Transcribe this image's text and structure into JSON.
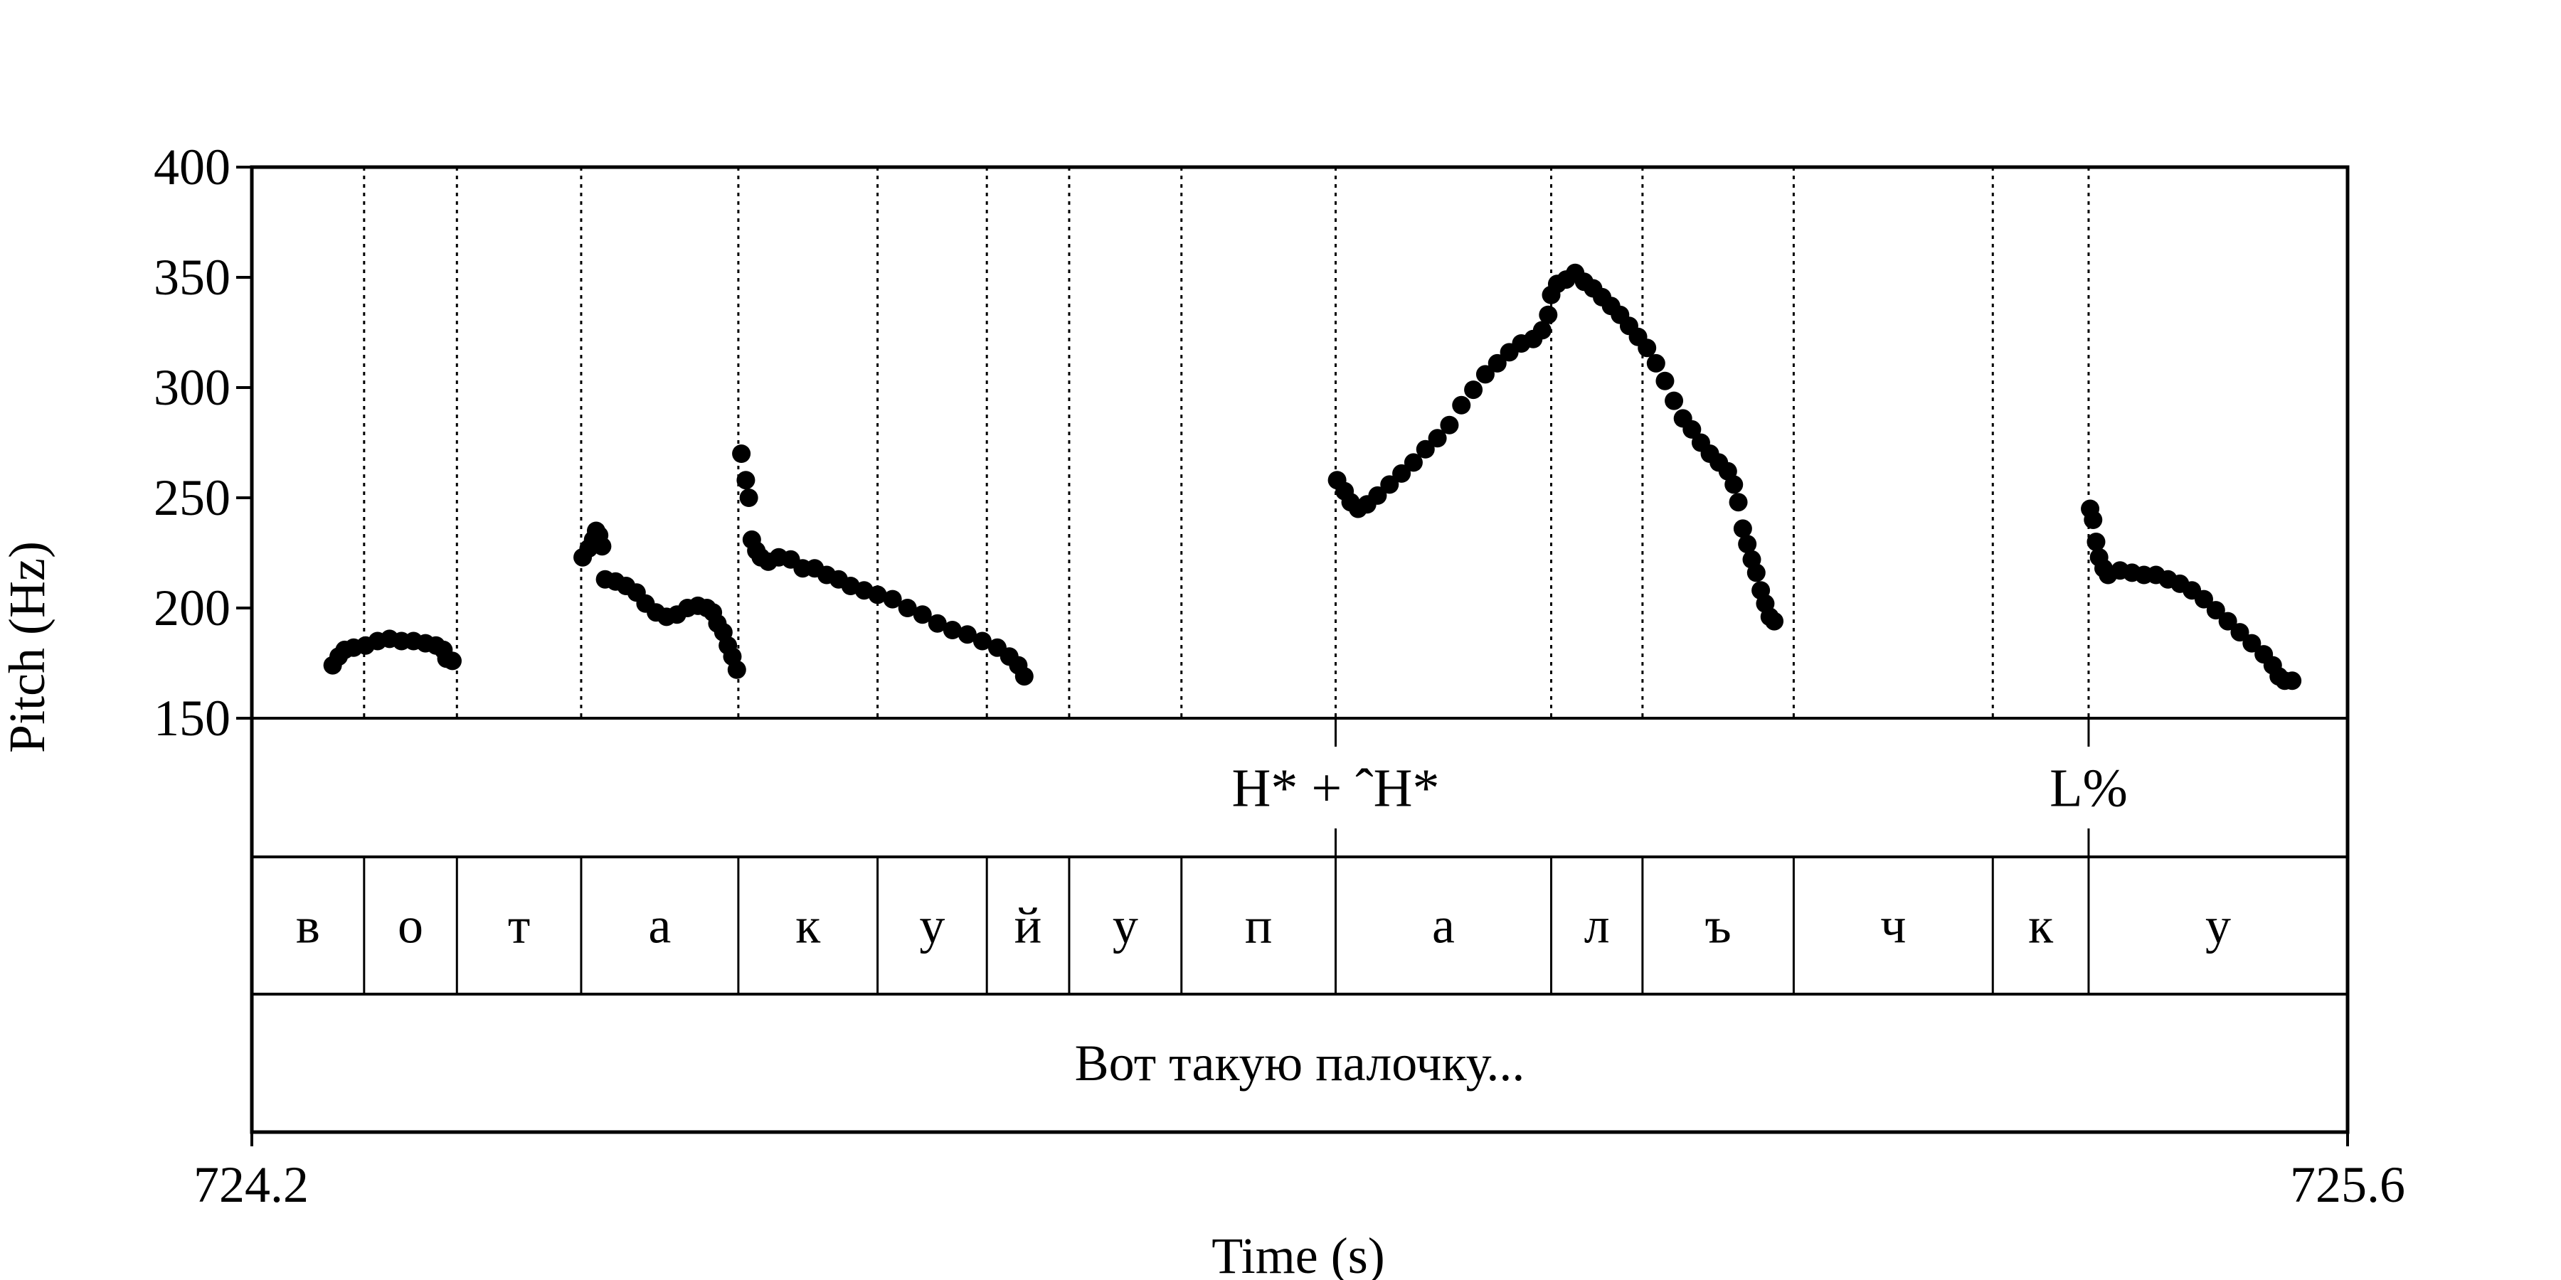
{
  "chart_data": {
    "type": "scatter",
    "title": "",
    "xlabel": "Time (s)",
    "ylabel": "Pitch (Hz)",
    "xlim": [
      724.2,
      725.6
    ],
    "ylim": [
      150,
      400
    ],
    "x_tick_labels": [
      "724.2",
      "725.6"
    ],
    "y_tick_labels": [
      "150",
      "200",
      "250",
      "300",
      "350",
      "400"
    ],
    "y_ticks": [
      150,
      200,
      250,
      300,
      350,
      400
    ],
    "grid": "dotted vertical lines at segment boundaries",
    "marker_color": "#000000",
    "boundaries": [
      724.275,
      724.337,
      724.42,
      724.525,
      724.618,
      724.691,
      724.746,
      724.821,
      724.924,
      725.068,
      725.129,
      725.23,
      725.363,
      725.427
    ],
    "tones": [
      {
        "label": "H* + ˆH*",
        "time": 724.924
      },
      {
        "label": "L%",
        "time": 725.427
      }
    ],
    "segments": [
      {
        "label": "в",
        "start": 724.2,
        "end": 724.275
      },
      {
        "label": "о",
        "start": 724.275,
        "end": 724.337
      },
      {
        "label": "т",
        "start": 724.337,
        "end": 724.42
      },
      {
        "label": "а",
        "start": 724.42,
        "end": 724.525
      },
      {
        "label": "к",
        "start": 724.525,
        "end": 724.618
      },
      {
        "label": "у",
        "start": 724.618,
        "end": 724.691
      },
      {
        "label": "й",
        "start": 724.691,
        "end": 724.746
      },
      {
        "label": "у",
        "start": 724.746,
        "end": 724.821
      },
      {
        "label": "п",
        "start": 724.821,
        "end": 724.924
      },
      {
        "label": "а",
        "start": 724.924,
        "end": 725.068
      },
      {
        "label": "л",
        "start": 725.068,
        "end": 725.129
      },
      {
        "label": "ъ",
        "start": 725.129,
        "end": 725.23
      },
      {
        "label": "ч",
        "start": 725.23,
        "end": 725.363
      },
      {
        "label": "к",
        "start": 725.363,
        "end": 725.427
      },
      {
        "label": "у",
        "start": 725.427,
        "end": 725.6
      }
    ],
    "words": [
      {
        "label": "Вот такую палочку...",
        "start": 724.2,
        "end": 725.6
      }
    ],
    "series": [
      {
        "points": [
          [
            724.254,
            174
          ],
          [
            724.258,
            178
          ],
          [
            724.262,
            181
          ],
          [
            724.268,
            182
          ],
          [
            724.276,
            183
          ],
          [
            724.284,
            185
          ],
          [
            724.292,
            186
          ],
          [
            724.3,
            185
          ],
          [
            724.308,
            185
          ],
          [
            724.316,
            184
          ],
          [
            724.323,
            183
          ],
          [
            724.328,
            181
          ],
          [
            724.33,
            177
          ],
          [
            724.334,
            176
          ],
          [
            724.421,
            223
          ],
          [
            724.425,
            227
          ],
          [
            724.428,
            231
          ],
          [
            724.43,
            235
          ],
          [
            724.432,
            233
          ],
          [
            724.434,
            228
          ],
          [
            724.436,
            213
          ],
          [
            724.443,
            212
          ],
          [
            724.45,
            210
          ],
          [
            724.457,
            207
          ],
          [
            724.463,
            202
          ],
          [
            724.47,
            198
          ],
          [
            724.477,
            196
          ],
          [
            724.484,
            197
          ],
          [
            724.491,
            200
          ],
          [
            724.498,
            201
          ],
          [
            724.504,
            200
          ],
          [
            724.508,
            198
          ],
          [
            724.511,
            193
          ],
          [
            724.515,
            189
          ],
          [
            724.518,
            183
          ],
          [
            724.521,
            178
          ],
          [
            724.524,
            172
          ],
          [
            724.527,
            270
          ],
          [
            724.53,
            258
          ],
          [
            724.532,
            250
          ],
          [
            724.534,
            231
          ],
          [
            724.537,
            226
          ],
          [
            724.54,
            223
          ],
          [
            724.545,
            221
          ],
          [
            724.552,
            223
          ],
          [
            724.56,
            222
          ],
          [
            724.568,
            218
          ],
          [
            724.576,
            218
          ],
          [
            724.584,
            215
          ],
          [
            724.592,
            213
          ],
          [
            724.6,
            210
          ],
          [
            724.609,
            208
          ],
          [
            724.618,
            206
          ],
          [
            724.628,
            204
          ],
          [
            724.638,
            200
          ],
          [
            724.648,
            197
          ],
          [
            724.658,
            193
          ],
          [
            724.668,
            190
          ],
          [
            724.678,
            188
          ],
          [
            724.688,
            185
          ],
          [
            724.698,
            182
          ],
          [
            724.706,
            178
          ],
          [
            724.712,
            174
          ],
          [
            724.716,
            169
          ],
          [
            724.925,
            258
          ],
          [
            724.93,
            253
          ],
          [
            724.934,
            248
          ],
          [
            724.939,
            245
          ],
          [
            724.945,
            247
          ],
          [
            724.952,
            251
          ],
          [
            724.96,
            256
          ],
          [
            724.968,
            261
          ],
          [
            724.976,
            266
          ],
          [
            724.984,
            272
          ],
          [
            724.992,
            277
          ],
          [
            725.0,
            283
          ],
          [
            725.008,
            292
          ],
          [
            725.016,
            299
          ],
          [
            725.024,
            306
          ],
          [
            725.032,
            311
          ],
          [
            725.04,
            316
          ],
          [
            725.048,
            320
          ],
          [
            725.056,
            322
          ],
          [
            725.062,
            326
          ],
          [
            725.066,
            333
          ],
          [
            725.068,
            342
          ],
          [
            725.072,
            347
          ],
          [
            725.078,
            349
          ],
          [
            725.084,
            352
          ],
          [
            725.09,
            348
          ],
          [
            725.096,
            345
          ],
          [
            725.102,
            341
          ],
          [
            725.108,
            337
          ],
          [
            725.114,
            333
          ],
          [
            725.12,
            328
          ],
          [
            725.126,
            323
          ],
          [
            725.132,
            318
          ],
          [
            725.138,
            311
          ],
          [
            725.144,
            303
          ],
          [
            725.15,
            294
          ],
          [
            725.156,
            286
          ],
          [
            725.162,
            281
          ],
          [
            725.168,
            275
          ],
          [
            725.174,
            270
          ],
          [
            725.18,
            266
          ],
          [
            725.186,
            262
          ],
          [
            725.19,
            256
          ],
          [
            725.193,
            248
          ],
          [
            725.196,
            236
          ],
          [
            725.199,
            229
          ],
          [
            725.202,
            222
          ],
          [
            725.205,
            216
          ],
          [
            725.208,
            208
          ],
          [
            725.211,
            202
          ],
          [
            725.214,
            196
          ],
          [
            725.217,
            194
          ],
          [
            725.428,
            245
          ],
          [
            725.43,
            240
          ],
          [
            725.432,
            230
          ],
          [
            725.434,
            223
          ],
          [
            725.437,
            218
          ],
          [
            725.44,
            215
          ],
          [
            725.448,
            217
          ],
          [
            725.456,
            216
          ],
          [
            725.464,
            215
          ],
          [
            725.472,
            215
          ],
          [
            725.48,
            213
          ],
          [
            725.488,
            211
          ],
          [
            725.496,
            208
          ],
          [
            725.504,
            204
          ],
          [
            725.512,
            199
          ],
          [
            725.52,
            194
          ],
          [
            725.528,
            189
          ],
          [
            725.536,
            184
          ],
          [
            725.544,
            179
          ],
          [
            725.55,
            174
          ],
          [
            725.554,
            169
          ],
          [
            725.558,
            167
          ],
          [
            725.563,
            167
          ]
        ]
      }
    ]
  }
}
